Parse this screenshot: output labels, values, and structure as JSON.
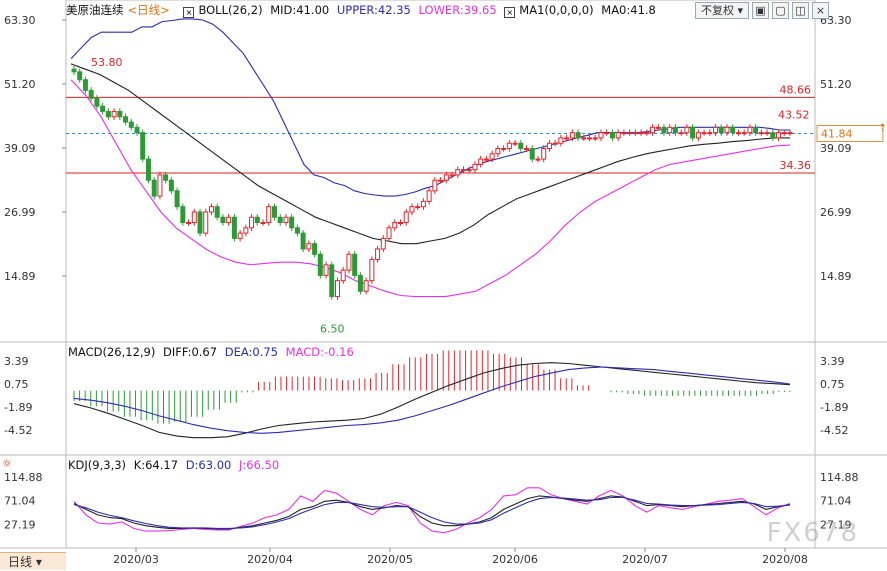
{
  "header": {
    "symbol": "美原油连续",
    "period": "<日线>",
    "boll": "BOLL(26,2)",
    "mid": "MID:41.00",
    "upper": "UPPER:42.35",
    "lower": "LOWER:39.65",
    "ma": "MA1(0,0,0,0)",
    "ma0": "MA0:41.8",
    "adjust": "不复权"
  },
  "macd_header": {
    "name": "MACD(26,12,9)",
    "diff": "DIFF:0.67",
    "dea": "DEA:0.75",
    "macd": "MACD:-0.16"
  },
  "kdj_header": {
    "name": "KDJ(9,3,3)",
    "k": "K:64.17",
    "d": "D:63.00",
    "j": "J:66.50"
  },
  "bottom_tab": "日线",
  "watermark": "FX678",
  "colors": {
    "up": "#e8232a",
    "down": "#2e9a36",
    "upper_band": "#2b2bb5",
    "lower_band": "#e830e8",
    "mid_band": "#222222",
    "level": "#dd2222",
    "dashed": "#2e8fd8",
    "macd_dea": "#2b2bb5",
    "macd_diff": "#222222",
    "kdj_k": "#222222",
    "kdj_d": "#2b2bb5",
    "kdj_j": "#e830e8"
  },
  "chart_data": [
    {
      "type": "candlestick",
      "title": "美原油连续 <日线>",
      "y_ticks": [
        "63.30",
        "51.20",
        "39.09",
        "26.99",
        "14.89"
      ],
      "x_ticks": [
        "2020/03",
        "2020/04",
        "2020/05",
        "2020/06",
        "2020/07",
        "2020/08"
      ],
      "levels": [
        48.66,
        34.36
      ],
      "current_price": 41.84,
      "annotations": [
        {
          "label": "53.80",
          "value": 53.8
        },
        {
          "label": "43.52",
          "value": 43.52
        },
        {
          "label": "6.50",
          "value": 6.5
        }
      ],
      "series_close": [
        53.5,
        52,
        50,
        48.5,
        47,
        46,
        45,
        46,
        45,
        44,
        43,
        42,
        37,
        33,
        30,
        34,
        33,
        31,
        28,
        25,
        25,
        27,
        23,
        27,
        28,
        26,
        25,
        26,
        22,
        23,
        24,
        26,
        25,
        25,
        28,
        26,
        25,
        26,
        24,
        23,
        20,
        21,
        19,
        15,
        17,
        11,
        14,
        16,
        19,
        15,
        12,
        14,
        18,
        20,
        22,
        24,
        25,
        25,
        27,
        28,
        28,
        29,
        31,
        33,
        33,
        34,
        34,
        35,
        35,
        35,
        36,
        37,
        37,
        38,
        39,
        39,
        40,
        40,
        39,
        39,
        37,
        37,
        39,
        40,
        40,
        41,
        41,
        42,
        41,
        41,
        41,
        41,
        42,
        42,
        41,
        42,
        42,
        42,
        42,
        42,
        42,
        43,
        43,
        42,
        43,
        42,
        42,
        43,
        41,
        42,
        42,
        42,
        43,
        42,
        43,
        42,
        42,
        42,
        43,
        42,
        42,
        42,
        41,
        42,
        42,
        42
      ],
      "series_upper": [
        56,
        58,
        60,
        61,
        61,
        61,
        61,
        62,
        62,
        63,
        63.2,
        63.5,
        63.5,
        63.3,
        62.5,
        61,
        59,
        57,
        54,
        51,
        48,
        44,
        40,
        36,
        34,
        33.5,
        32.5,
        32,
        31,
        30.5,
        30.2,
        30,
        30,
        30.3,
        30.8,
        31.5,
        32,
        33,
        34,
        35,
        35.8,
        36.5,
        37,
        37.5,
        38,
        38.5,
        39,
        39.5,
        40,
        40.5,
        41,
        41.5,
        42,
        42,
        42,
        42,
        42,
        42.2,
        42.5,
        42.7,
        43,
        43,
        43,
        43,
        43,
        43,
        43,
        43,
        43,
        42.8,
        42.5,
        42.5
      ],
      "series_mid": [
        55,
        54,
        53,
        51.5,
        50,
        48,
        46,
        44,
        42,
        40,
        38,
        36,
        34,
        32,
        30.5,
        29,
        27.5,
        26,
        25,
        24,
        23,
        22,
        21.5,
        21,
        21,
        21.5,
        22,
        23,
        24.5,
        26.5,
        28,
        29.5,
        30.5,
        31.5,
        32.5,
        33.5,
        34.5,
        35.5,
        36.5,
        37.3,
        38,
        38.5,
        39,
        39.5,
        39.8,
        40,
        40.3,
        40.5,
        40.8,
        41,
        41
      ],
      "series_lower": [
        52,
        49,
        45,
        40,
        35,
        31,
        27,
        24,
        22,
        20,
        18.5,
        17.5,
        17,
        17.3,
        17.5,
        17.5,
        17.2,
        16.5,
        15.5,
        14,
        13,
        12,
        11.2,
        11,
        11,
        11,
        11.5,
        12,
        13.5,
        15,
        17,
        19,
        21.5,
        24.5,
        27,
        29,
        30.5,
        32,
        33.5,
        35,
        36,
        36.5,
        37,
        37.5,
        38,
        38.5,
        39,
        39.5,
        39.65
      ]
    },
    {
      "type": "bar",
      "title": "MACD(26,12,9)",
      "y_ticks": [
        "3.39",
        "0.75",
        "-1.89",
        "-4.52"
      ],
      "diff": [
        -1.5,
        -2.0,
        -2.6,
        -3.3,
        -4.0,
        -4.8,
        -5.2,
        -5.4,
        -5.4,
        -5.3,
        -4.9,
        -4.4,
        -4.0,
        -3.8,
        -3.6,
        -3.5,
        -3.4,
        -3.2,
        -2.7,
        -1.9,
        -1.0,
        -0.2,
        0.6,
        1.3,
        2.0,
        2.5,
        2.9,
        3.1,
        3.2,
        3.1,
        2.9,
        2.7,
        2.5,
        2.3,
        2.1,
        1.9,
        1.7,
        1.5,
        1.3,
        1.1,
        0.9,
        0.8,
        0.67
      ],
      "dea": [
        -0.9,
        -1.1,
        -1.4,
        -1.8,
        -2.3,
        -2.9,
        -3.4,
        -3.9,
        -4.3,
        -4.6,
        -4.8,
        -4.9,
        -4.8,
        -4.6,
        -4.4,
        -4.2,
        -4.0,
        -3.9,
        -3.7,
        -3.4,
        -2.9,
        -2.3,
        -1.7,
        -1.0,
        -0.3,
        0.4,
        1.0,
        1.6,
        2.0,
        2.4,
        2.6,
        2.7,
        2.6,
        2.5,
        2.4,
        2.2,
        2.0,
        1.8,
        1.6,
        1.4,
        1.2,
        1.0,
        0.75
      ]
    },
    {
      "type": "line",
      "title": "KDJ(9,3,3)",
      "y_ticks": [
        "114.88",
        "71.04",
        "27.19"
      ],
      "k": [
        66,
        55,
        45,
        40,
        38,
        30,
        25,
        22,
        20,
        20,
        21,
        20,
        19,
        19,
        22,
        25,
        30,
        35,
        42,
        55,
        60,
        70,
        72,
        68,
        60,
        55,
        58,
        62,
        60,
        42,
        30,
        25,
        25,
        28,
        32,
        40,
        55,
        65,
        75,
        80,
        78,
        75,
        72,
        70,
        75,
        80,
        78,
        70,
        62,
        64,
        62,
        60,
        62,
        64,
        66,
        68,
        70,
        65,
        55,
        60,
        64
      ],
      "d": [
        64,
        58,
        50,
        44,
        40,
        34,
        29,
        25,
        22,
        21,
        21,
        21,
        20,
        20,
        21,
        23,
        27,
        32,
        38,
        48,
        56,
        64,
        68,
        68,
        64,
        60,
        59,
        60,
        60,
        50,
        40,
        32,
        28,
        28,
        30,
        36,
        48,
        58,
        68,
        75,
        77,
        76,
        74,
        72,
        73,
        77,
        77,
        72,
        66,
        65,
        63,
        62,
        62,
        63,
        64,
        66,
        68,
        66,
        60,
        61,
        63
      ],
      "j": [
        70,
        45,
        30,
        28,
        32,
        20,
        15,
        15,
        16,
        18,
        20,
        18,
        17,
        17,
        24,
        30,
        40,
        45,
        55,
        80,
        70,
        90,
        85,
        70,
        55,
        45,
        62,
        68,
        62,
        30,
        15,
        12,
        18,
        30,
        40,
        55,
        80,
        82,
        95,
        95,
        82,
        75,
        70,
        65,
        80,
        90,
        80,
        62,
        50,
        62,
        58,
        55,
        60,
        65,
        70,
        72,
        75,
        60,
        45,
        58,
        66
      ]
    }
  ]
}
